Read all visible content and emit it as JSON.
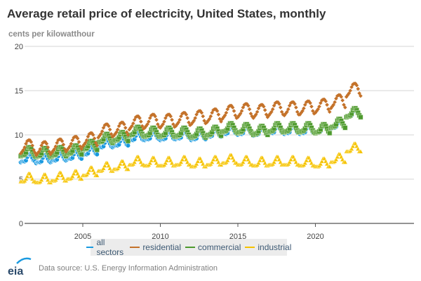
{
  "header": {
    "title": "Average retail price of electricity, United States, monthly",
    "units": "cents per kilowatthour"
  },
  "footer": {
    "logo_text": "eia",
    "source": "Data source: U.S. Energy Information Administration"
  },
  "chart_data": {
    "type": "scatter",
    "title": "Average retail price of electricity, United States, monthly",
    "ylabel": "cents per kilowatthour",
    "xlabel": "",
    "xlim": [
      2001,
      2023
    ],
    "ylim": [
      0,
      20
    ],
    "yticks": [
      "0",
      "5",
      "10",
      "15",
      "20"
    ],
    "xticks": [
      "2005",
      "2010",
      "2015",
      "2020"
    ],
    "grid": true,
    "legend_position": "bottom",
    "frequency": "monthly (annual average + seasonal offset)",
    "years": [
      2001,
      2002,
      2003,
      2004,
      2005,
      2006,
      2007,
      2008,
      2009,
      2010,
      2011,
      2012,
      2013,
      2014,
      2015,
      2016,
      2017,
      2018,
      2019,
      2020,
      2021,
      2022
    ],
    "series": [
      {
        "name": "all sectors",
        "color": "#1a9ae0",
        "marker": "circle",
        "annual": [
          7.3,
          7.2,
          7.4,
          7.6,
          8.1,
          8.9,
          9.1,
          9.7,
          9.8,
          9.8,
          9.9,
          9.8,
          10.1,
          10.4,
          10.4,
          10.3,
          10.5,
          10.5,
          10.5,
          10.6,
          11.1,
          12.4
        ],
        "seasonal": [
          -0.4,
          -0.3,
          -0.3,
          -0.3,
          -0.2,
          0.2,
          0.5,
          0.5,
          0.4,
          0.1,
          -0.2,
          -0.3
        ]
      },
      {
        "name": "residential",
        "color": "#c4722a",
        "marker": "diamond",
        "annual": [
          8.6,
          8.4,
          8.7,
          9.0,
          9.4,
          10.4,
          10.6,
          11.3,
          11.5,
          11.5,
          11.7,
          11.9,
          12.1,
          12.5,
          12.7,
          12.6,
          12.9,
          12.9,
          13.0,
          13.2,
          13.7,
          15.0
        ],
        "seasonal": [
          -0.7,
          -0.5,
          -0.3,
          0.0,
          0.4,
          0.7,
          0.8,
          0.8,
          0.6,
          0.2,
          -0.3,
          -0.6
        ]
      },
      {
        "name": "commercial",
        "color": "#4e9a2e",
        "marker": "square",
        "annual": [
          8.0,
          7.9,
          8.0,
          8.2,
          8.7,
          9.5,
          9.7,
          10.3,
          10.2,
          10.2,
          10.2,
          10.1,
          10.3,
          10.7,
          10.6,
          10.4,
          10.7,
          10.7,
          10.7,
          10.6,
          11.2,
          12.4
        ],
        "seasonal": [
          -0.4,
          -0.3,
          -0.3,
          -0.2,
          0.0,
          0.4,
          0.6,
          0.6,
          0.4,
          0.1,
          -0.2,
          -0.4
        ]
      },
      {
        "name": "industrial",
        "color": "#f5c200",
        "marker": "triangle",
        "annual": [
          5.0,
          4.9,
          5.1,
          5.3,
          5.7,
          6.2,
          6.4,
          6.9,
          6.8,
          6.8,
          6.9,
          6.7,
          6.9,
          7.1,
          6.9,
          6.8,
          6.9,
          6.9,
          6.8,
          6.7,
          7.2,
          8.4
        ],
        "seasonal": [
          -0.3,
          -0.3,
          -0.3,
          -0.2,
          0.0,
          0.3,
          0.6,
          0.6,
          0.3,
          0.0,
          -0.3,
          -0.3
        ]
      }
    ]
  }
}
